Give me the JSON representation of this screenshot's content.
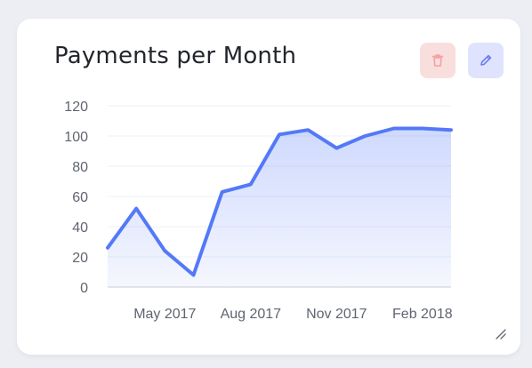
{
  "card": {
    "title": "Payments per Month",
    "actions": [
      {
        "name": "delete-button",
        "icon": "trash-icon",
        "color": "#f3a3a3",
        "background": "#f9dede"
      },
      {
        "name": "edit-button",
        "icon": "pencil-icon",
        "color": "#6d7cf2",
        "background": "#dfe3fd"
      }
    ]
  },
  "chart_data": {
    "type": "area",
    "title": "Payments per Month",
    "xlabel": "",
    "ylabel": "",
    "x": [
      "2017-03",
      "2017-04",
      "2017-05",
      "2017-06",
      "2017-07",
      "2017-08",
      "2017-09",
      "2017-10",
      "2017-11",
      "2017-12",
      "2018-01",
      "2018-02",
      "2018-03"
    ],
    "series": [
      {
        "values": [
          26,
          52,
          24,
          8,
          63,
          68,
          101,
          104,
          92,
          100,
          105,
          105,
          104
        ]
      }
    ],
    "x_tick_labels": [
      "May 2017",
      "Aug 2017",
      "Nov 2017",
      "Feb 2018"
    ],
    "x_tick_positions": [
      "2017-05",
      "2017-08",
      "2017-11",
      "2018-02"
    ],
    "y_ticks": [
      0,
      20,
      40,
      60,
      80,
      100,
      120
    ],
    "ylim": [
      0,
      120
    ],
    "grid": true,
    "line_color": "#5479f7",
    "fill_color": "#5479f7"
  }
}
